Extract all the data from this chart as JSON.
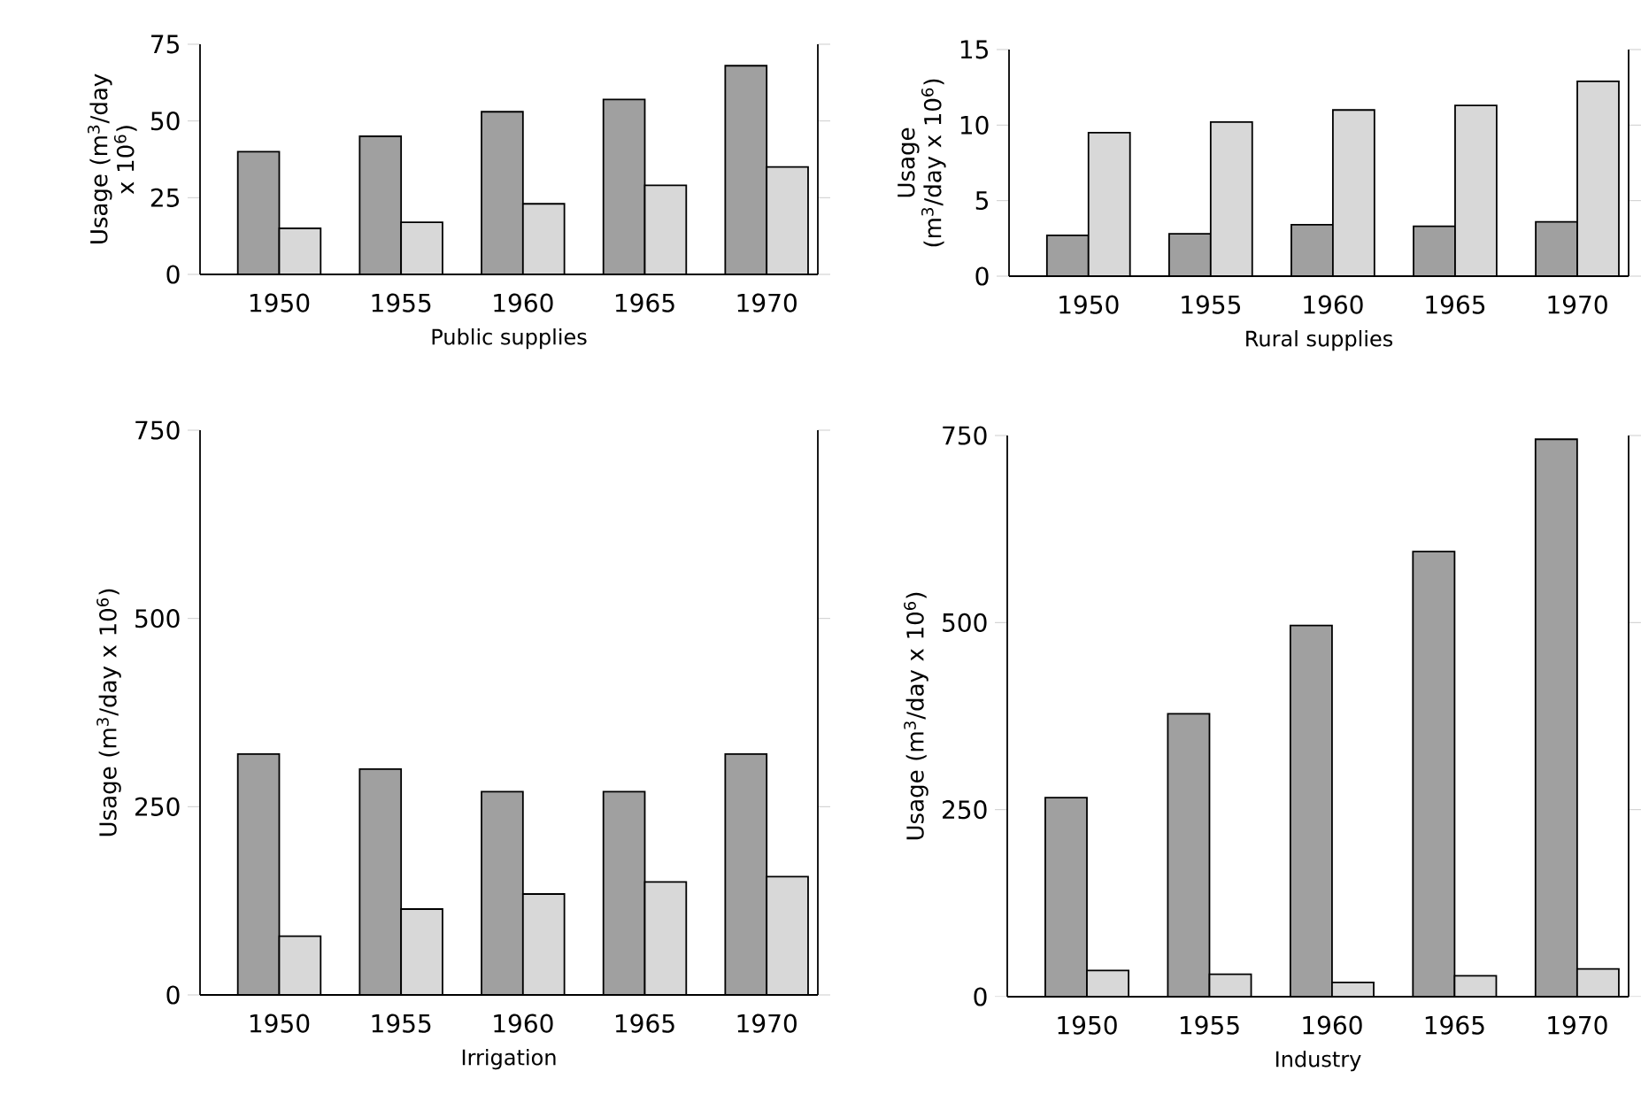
{
  "chart_data": [
    {
      "type": "bar",
      "xlabel": "Public supplies",
      "ylabel": "Usage (m$^{3}$/day x 10$^{6}$)",
      "categories": [
        "1950",
        "1955",
        "1960",
        "1965",
        "1970"
      ],
      "ylim": [
        0,
        75
      ],
      "yticks": [
        0,
        25,
        50,
        75
      ],
      "grid": false,
      "series": [
        {
          "color": "#a0a0a0",
          "values": [
            40,
            45,
            53,
            57,
            68
          ]
        },
        {
          "color": "#d8d8d8",
          "values": [
            15,
            17,
            23,
            29,
            35
          ]
        }
      ]
    },
    {
      "type": "bar",
      "xlabel": "Rural supplies",
      "ylabel": "Usage (m$^{3}$/day x 10$^{6}$)",
      "categories": [
        "1950",
        "1955",
        "1960",
        "1965",
        "1970"
      ],
      "ylim": [
        0,
        15
      ],
      "yticks": [
        0,
        5,
        10,
        15
      ],
      "grid": false,
      "series": [
        {
          "color": "#a0a0a0",
          "values": [
            2.7,
            2.8,
            3.4,
            3.3,
            3.6
          ]
        },
        {
          "color": "#d8d8d8",
          "values": [
            9.5,
            10.2,
            11,
            11.3,
            12.9
          ]
        }
      ]
    },
    {
      "type": "bar",
      "xlabel": "Irrigation",
      "ylabel": "Usage (m$^{3}$/day x 10$^{6}$)",
      "categories": [
        "1950",
        "1955",
        "1960",
        "1965",
        "1970"
      ],
      "ylim": [
        0,
        750
      ],
      "yticks": [
        0,
        250,
        500,
        750
      ],
      "grid": false,
      "series": [
        {
          "color": "#a0a0a0",
          "values": [
            320,
            300,
            270,
            270,
            320
          ]
        },
        {
          "color": "#d8d8d8",
          "values": [
            78,
            114,
            134,
            150,
            157
          ]
        }
      ]
    },
    {
      "type": "bar",
      "xlabel": "Industry",
      "ylabel": "Usage (m$^{3}$/day x 10$^{6}$)",
      "categories": [
        "1950",
        "1955",
        "1960",
        "1965",
        "1970"
      ],
      "ylim": [
        0,
        750
      ],
      "yticks": [
        0,
        250,
        500,
        750
      ],
      "grid": false,
      "series": [
        {
          "color": "#a0a0a0",
          "values": [
            266,
            378,
            496,
            595,
            745
          ]
        },
        {
          "color": "#d8d8d8",
          "values": [
            35,
            30,
            19,
            28,
            37
          ]
        }
      ]
    }
  ]
}
